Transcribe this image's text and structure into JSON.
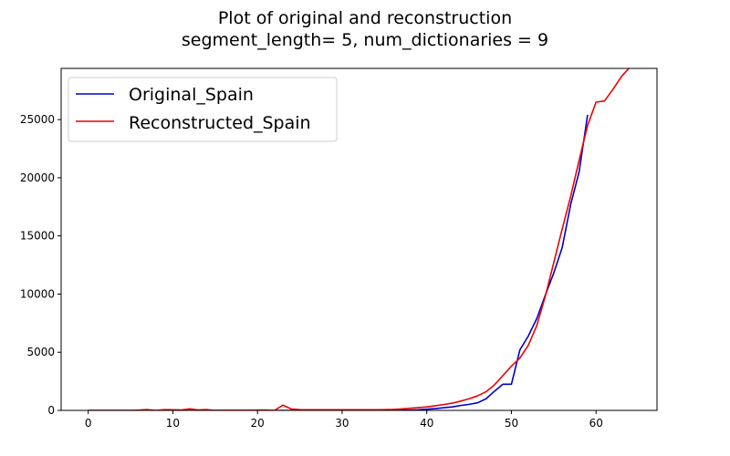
{
  "chart_data": {
    "type": "line",
    "title_line1": "Plot of original and reconstruction",
    "title_line2": "segment_length= 5, num_dictionaries = 9",
    "xlabel": "",
    "ylabel": "",
    "xlim": [
      -3.2,
      67.2
    ],
    "ylim": [
      0,
      29400
    ],
    "xticks": [
      0,
      10,
      20,
      30,
      40,
      50,
      60
    ],
    "yticks": [
      0,
      5000,
      10000,
      15000,
      20000,
      25000
    ],
    "grid": false,
    "legend_position": "top-left",
    "series": [
      {
        "name": "Original_Spain",
        "color": "#0000cc",
        "x": [
          0,
          1,
          2,
          3,
          4,
          5,
          6,
          7,
          8,
          9,
          10,
          11,
          12,
          13,
          14,
          15,
          16,
          17,
          18,
          19,
          20,
          21,
          22,
          23,
          24,
          25,
          26,
          27,
          28,
          29,
          30,
          31,
          32,
          33,
          34,
          35,
          36,
          37,
          38,
          39,
          40,
          41,
          42,
          43,
          44,
          45,
          46,
          47,
          48,
          49,
          50,
          51,
          52,
          53,
          54,
          55,
          56,
          57,
          58,
          59
        ],
        "y": [
          0,
          0,
          0,
          0,
          0,
          0,
          0,
          0,
          0,
          0,
          0,
          0,
          0,
          0,
          0,
          0,
          0,
          0,
          0,
          0,
          0,
          0,
          0,
          0,
          0,
          0,
          0,
          0,
          0,
          0,
          0,
          0,
          0,
          2,
          2,
          2,
          10,
          15,
          30,
          50,
          100,
          150,
          230,
          300,
          420,
          520,
          650,
          1000,
          1650,
          2250,
          2250,
          5200,
          6400,
          7900,
          9900,
          11800,
          14000,
          17700,
          20500,
          25400
        ]
      },
      {
        "name": "Reconstructed_Spain",
        "color": "#ee0000",
        "x": [
          0,
          1,
          2,
          3,
          4,
          5,
          6,
          7,
          8,
          9,
          10,
          11,
          12,
          13,
          14,
          15,
          16,
          17,
          18,
          19,
          20,
          21,
          22,
          23,
          24,
          25,
          26,
          27,
          28,
          29,
          30,
          31,
          32,
          33,
          34,
          35,
          36,
          37,
          38,
          39,
          40,
          41,
          42,
          43,
          44,
          45,
          46,
          47,
          48,
          49,
          50,
          51,
          52,
          53,
          54,
          55,
          56,
          57,
          58,
          59,
          60,
          61,
          62,
          63,
          64
        ],
        "y": [
          0,
          0,
          0,
          0,
          0,
          0,
          30,
          70,
          0,
          60,
          50,
          40,
          130,
          40,
          70,
          0,
          20,
          20,
          20,
          20,
          30,
          40,
          0,
          450,
          120,
          60,
          50,
          50,
          50,
          50,
          50,
          50,
          50,
          50,
          50,
          60,
          80,
          120,
          180,
          240,
          300,
          400,
          500,
          620,
          800,
          1000,
          1250,
          1600,
          2200,
          3000,
          3800,
          4500,
          5600,
          7300,
          9800,
          12700,
          15600,
          18400,
          21500,
          24500,
          26500,
          26600,
          27600,
          28700,
          29500
        ]
      }
    ]
  }
}
